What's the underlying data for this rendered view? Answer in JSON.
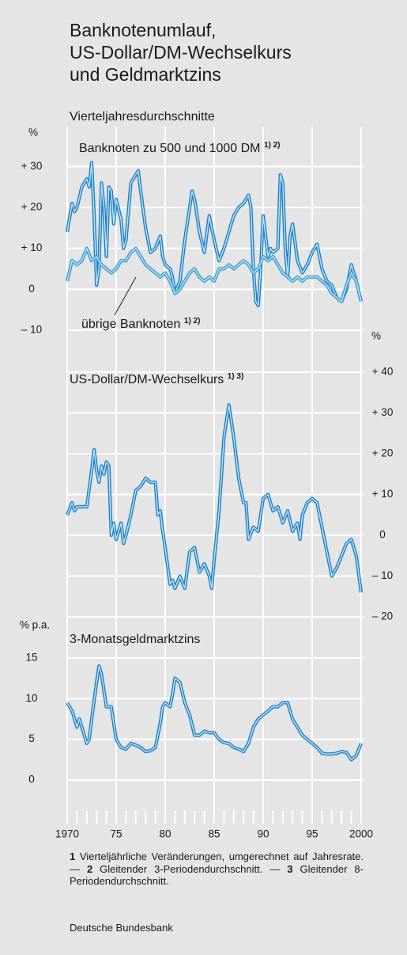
{
  "title": [
    "Banknotenumlauf,",
    "US-Dollar/DM-Wechselkurs",
    "und Geldmarktzins"
  ],
  "subtitle": "Vierteljahresdurchschnitte",
  "chart_data": [
    {
      "type": "line",
      "ylabel": "%",
      "ylim": [
        -10,
        38
      ],
      "yticks": [
        {
          "value": 30,
          "label": "+ 30"
        },
        {
          "value": 20,
          "label": "+ 20"
        },
        {
          "value": 10,
          "label": "+ 10"
        },
        0,
        {
          "value": -10,
          "label": "– 10"
        }
      ],
      "grid": true,
      "series": [
        {
          "name": "Banknoten zu 500 und 1000 DM",
          "footnote_refs": "1) 2)",
          "color": "#1f7fc4",
          "x": [
            1970,
            1970.5,
            1970.75,
            1971,
            1971.5,
            1972,
            1972.25,
            1972.5,
            1972.75,
            1973,
            1973.25,
            1973.5,
            1973.75,
            1974,
            1974.25,
            1974.5,
            1974.75,
            1975,
            1975.5,
            1975.75,
            1976,
            1976.5,
            1977,
            1977.25,
            1977.5,
            1978,
            1978.5,
            1979,
            1979.5,
            1979.75,
            1980,
            1980.5,
            1980.75,
            1981,
            1981.5,
            1982,
            1982.5,
            1982.75,
            1983,
            1983.5,
            1984,
            1984.5,
            1985,
            1985.5,
            1986,
            1986.5,
            1987,
            1987.5,
            1988,
            1988.5,
            1988.75,
            1989,
            1989.25,
            1989.5,
            1989.75,
            1990,
            1990.5,
            1990.75,
            1991,
            1991.5,
            1991.75,
            1992,
            1992.25,
            1992.5,
            1992.75,
            1993,
            1993.5,
            1994,
            1994.5,
            1995,
            1995.5,
            1996,
            1996.5,
            1997,
            1997.5,
            1998,
            1998.5,
            1999,
            1999.5,
            2000
          ],
          "values": [
            14,
            21,
            19,
            20,
            25,
            27,
            25,
            31,
            18,
            1,
            5,
            26,
            20,
            8,
            25,
            24,
            16,
            22,
            17,
            10,
            12,
            26,
            28,
            29,
            24,
            15,
            9,
            10,
            13,
            8,
            6,
            5,
            3,
            -1,
            2,
            12,
            20,
            24,
            22,
            14,
            9,
            18,
            12,
            7,
            10,
            14,
            18,
            20,
            21,
            23,
            20,
            5,
            -3,
            -4,
            5,
            18,
            8,
            10,
            9,
            10,
            28,
            26,
            10,
            3,
            13,
            16,
            7,
            4,
            6,
            9,
            11,
            5,
            2,
            1,
            -2,
            -3,
            0,
            6,
            2,
            -3
          ]
        },
        {
          "name": "übrige Banknoten",
          "footnote_refs": "1) 2)",
          "color": "#3a9ad4",
          "x": [
            1970,
            1970.5,
            1971,
            1971.5,
            1972,
            1972.5,
            1973,
            1973.5,
            1974,
            1974.5,
            1975,
            1975.5,
            1976,
            1976.5,
            1977,
            1977.5,
            1978,
            1978.5,
            1979,
            1979.5,
            1980,
            1980.5,
            1981,
            1981.5,
            1982,
            1982.5,
            1983,
            1983.5,
            1984,
            1984.5,
            1985,
            1985.5,
            1986,
            1986.5,
            1987,
            1987.5,
            1988,
            1988.5,
            1989,
            1989.5,
            1990,
            1990.5,
            1991,
            1991.5,
            1992,
            1992.5,
            1993,
            1993.5,
            1994,
            1994.5,
            1995,
            1995.5,
            1996,
            1996.5,
            1997,
            1997.5,
            1998,
            1998.5,
            1999,
            1999.5,
            2000
          ],
          "values": [
            2,
            7,
            6,
            7,
            10,
            7,
            8,
            6,
            5,
            4,
            5,
            7,
            7,
            9,
            10,
            8,
            6,
            5,
            4,
            3,
            4,
            2,
            -1,
            0,
            2,
            4,
            5,
            3,
            2,
            3,
            2,
            5,
            5,
            6,
            5,
            6,
            7,
            6,
            4,
            5,
            8,
            7,
            8,
            6,
            4,
            3,
            2,
            3,
            2,
            3,
            3,
            3,
            2,
            1,
            -1,
            -2,
            -3,
            1,
            4,
            2,
            -3
          ]
        }
      ]
    },
    {
      "type": "line",
      "ylabel": "%",
      "ylim": [
        -20,
        40
      ],
      "yticks": [
        {
          "value": 40,
          "label": "+ 40"
        },
        {
          "value": 30,
          "label": "+ 30"
        },
        {
          "value": 20,
          "label": "+ 20"
        },
        {
          "value": 10,
          "label": "+ 10"
        },
        0,
        {
          "value": -10,
          "label": "– 10"
        },
        {
          "value": -20,
          "label": "– 20"
        }
      ],
      "grid": true,
      "yaxis_side": "right",
      "series": [
        {
          "name": "US-Dollar/DM-Wechselkurs",
          "footnote_refs": "1) 3)",
          "color": "#1f7fc4",
          "x": [
            1970,
            1970.5,
            1970.75,
            1971,
            1971.5,
            1972,
            1972.5,
            1972.75,
            1973,
            1973.25,
            1973.5,
            1973.75,
            1974,
            1974.25,
            1974.5,
            1974.75,
            1975,
            1975.5,
            1975.75,
            1976,
            1976.5,
            1977,
            1977.5,
            1978,
            1978.5,
            1979,
            1979.25,
            1979.5,
            1979.75,
            1980,
            1980.5,
            1980.75,
            1981,
            1981.5,
            1982,
            1982.5,
            1983,
            1983.5,
            1984,
            1984.5,
            1984.75,
            1985,
            1985.5,
            1986,
            1986.5,
            1986.75,
            1987,
            1987.5,
            1988,
            1988.25,
            1988.5,
            1989,
            1989.5,
            1990,
            1990.5,
            1991,
            1991.5,
            1992,
            1992.5,
            1993,
            1993.5,
            1993.75,
            1994,
            1994.5,
            1995,
            1995.5,
            1996,
            1996.5,
            1997,
            1997.5,
            1998,
            1998.5,
            1999,
            1999.5,
            2000
          ],
          "values": [
            5,
            8,
            6,
            7,
            7,
            7,
            16,
            21,
            16,
            13,
            17,
            15,
            18,
            17,
            0,
            3,
            -1,
            3,
            -2,
            0,
            5,
            11,
            12,
            14,
            13,
            13,
            5,
            6,
            1,
            -3,
            -12,
            -11,
            -13,
            -10,
            -13,
            -4,
            -3,
            -9,
            -7,
            -10,
            -13,
            -6,
            6,
            24,
            32,
            28,
            24,
            14,
            8,
            8,
            -1,
            2,
            1,
            9,
            10,
            6,
            7,
            3,
            6,
            1,
            3,
            -1,
            5,
            8,
            9,
            8,
            2,
            -4,
            -10,
            -8,
            -5,
            -2,
            -1,
            -5,
            -14
          ]
        }
      ]
    },
    {
      "type": "line",
      "ylabel": "% p.a.",
      "ylim": [
        -5,
        18
      ],
      "yticks": [
        15,
        10,
        5,
        0
      ],
      "grid": true,
      "xlim": [
        1970,
        2000
      ],
      "xticks": [
        1970,
        {
          "value": 1975,
          "label": "75"
        },
        {
          "value": 1980,
          "label": "80"
        },
        {
          "value": 1985,
          "label": "85"
        },
        {
          "value": 1990,
          "label": "90"
        },
        {
          "value": 1995,
          "label": "95"
        },
        2000
      ],
      "series": [
        {
          "name": "3-Monatsgeldmarktzins",
          "color": "#1f7fc4",
          "x": [
            1970,
            1970.5,
            1971,
            1971.25,
            1971.5,
            1972,
            1972.25,
            1972.5,
            1973,
            1973.25,
            1973.5,
            1974,
            1974.5,
            1975,
            1975.5,
            1976,
            1976.5,
            1977,
            1977.5,
            1978,
            1978.5,
            1979,
            1979.5,
            1979.75,
            1980,
            1980.5,
            1980.75,
            1981,
            1981.5,
            1982,
            1982.5,
            1983,
            1983.5,
            1984,
            1984.5,
            1985,
            1985.5,
            1986,
            1986.5,
            1987,
            1987.5,
            1988,
            1988.5,
            1989,
            1989.5,
            1990,
            1990.5,
            1991,
            1991.5,
            1992,
            1992.5,
            1993,
            1993.5,
            1994,
            1994.5,
            1995,
            1995.5,
            1996,
            1996.5,
            1997,
            1997.5,
            1998,
            1998.5,
            1999,
            1999.5,
            2000
          ],
          "values": [
            9.5,
            8.5,
            6.5,
            7.5,
            6.5,
            4.5,
            5,
            7.5,
            12,
            14,
            13,
            9,
            9,
            5,
            4,
            3.8,
            4.5,
            4.3,
            4,
            3.5,
            3.6,
            4,
            7,
            9,
            9.5,
            9,
            10.5,
            12.5,
            12,
            9.5,
            8,
            5.5,
            5.5,
            6,
            5.8,
            5.8,
            5,
            4.6,
            4.5,
            4,
            3.8,
            3.5,
            4.5,
            6.5,
            7.5,
            8,
            8.5,
            9,
            9,
            9.5,
            9.5,
            7.5,
            6.5,
            5.5,
            5,
            4.5,
            4,
            3.3,
            3.2,
            3.2,
            3.3,
            3.5,
            3.4,
            2.5,
            3,
            4.5
          ]
        }
      ]
    }
  ],
  "footnotes": [
    {
      "number": "1",
      "text": "Vierteljährliche Veränderungen, umgerechnet auf Jahresrate. —"
    },
    {
      "number": "2",
      "text": "Gleitender 3-Periodendurchschnitt. —"
    },
    {
      "number": "3",
      "text": "Gleitender 8-Periodendurchschnitt."
    }
  ],
  "source": "Deutsche Bundesbank"
}
